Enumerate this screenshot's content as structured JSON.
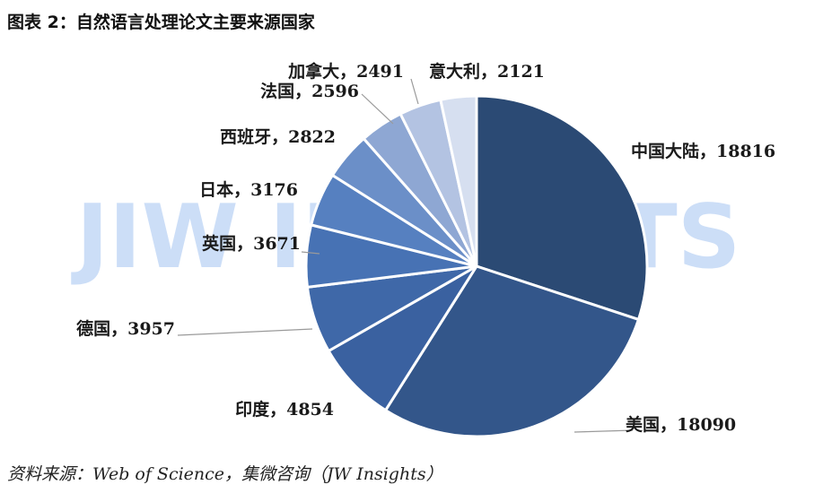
{
  "title": "图表 2：自然语言处理论文主要来源国家",
  "source": "资料来源：Web of Science，集微咨询（JW Insights）",
  "watermark": "JIW INSIGHTS",
  "chart_data": {
    "type": "pie",
    "title": "图表 2：自然语言处理论文主要来源国家",
    "start_angle_deg": 0,
    "direction": "clockwise",
    "slices": [
      {
        "label": "中国大陆",
        "value": 18816,
        "color": "#2b4a74"
      },
      {
        "label": "美国",
        "value": 18090,
        "color": "#33568a"
      },
      {
        "label": "印度",
        "value": 4854,
        "color": "#3a61a0"
      },
      {
        "label": "德国",
        "value": 3957,
        "color": "#3f68a8"
      },
      {
        "label": "英国",
        "value": 3671,
        "color": "#4772b4"
      },
      {
        "label": "日本",
        "value": 3176,
        "color": "#5680c0"
      },
      {
        "label": "西班牙",
        "value": 2822,
        "color": "#6b8fc8"
      },
      {
        "label": "法国",
        "value": 2596,
        "color": "#8ea7d3"
      },
      {
        "label": "加拿大",
        "value": 2491,
        "color": "#b3c3e2"
      },
      {
        "label": "意大利",
        "value": 2121,
        "color": "#d6dff0"
      }
    ]
  }
}
